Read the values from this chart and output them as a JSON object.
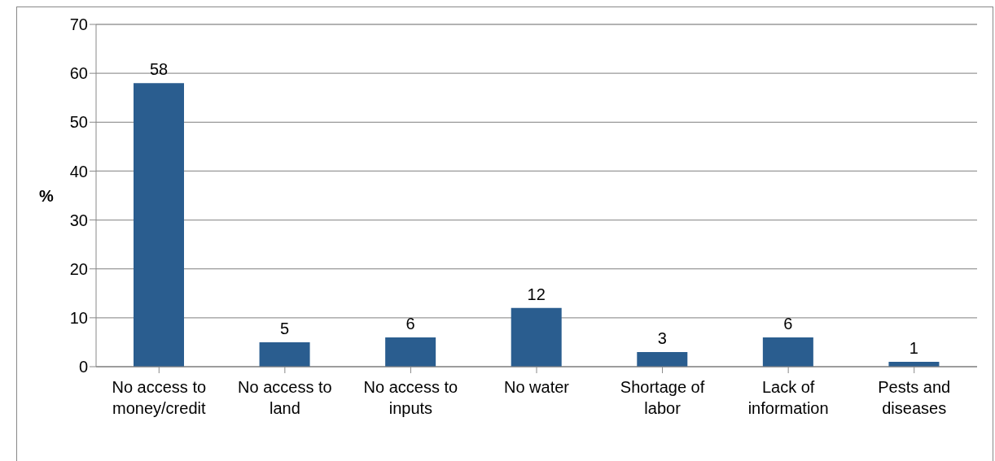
{
  "chart_data": {
    "type": "bar",
    "ylabel": "%",
    "categories": [
      "No access to money/credit",
      "No access to land",
      "No access to inputs",
      "No water",
      "Shortage of labor",
      "Lack of information",
      "Pests and diseases"
    ],
    "values": [
      58,
      5,
      6,
      12,
      3,
      6,
      1
    ],
    "color": "#2a5d8f",
    "ylim": [
      0,
      70
    ],
    "yticks": [
      0,
      10,
      20,
      30,
      40,
      50,
      60,
      70
    ],
    "grid": "y",
    "data_labels": true
  }
}
